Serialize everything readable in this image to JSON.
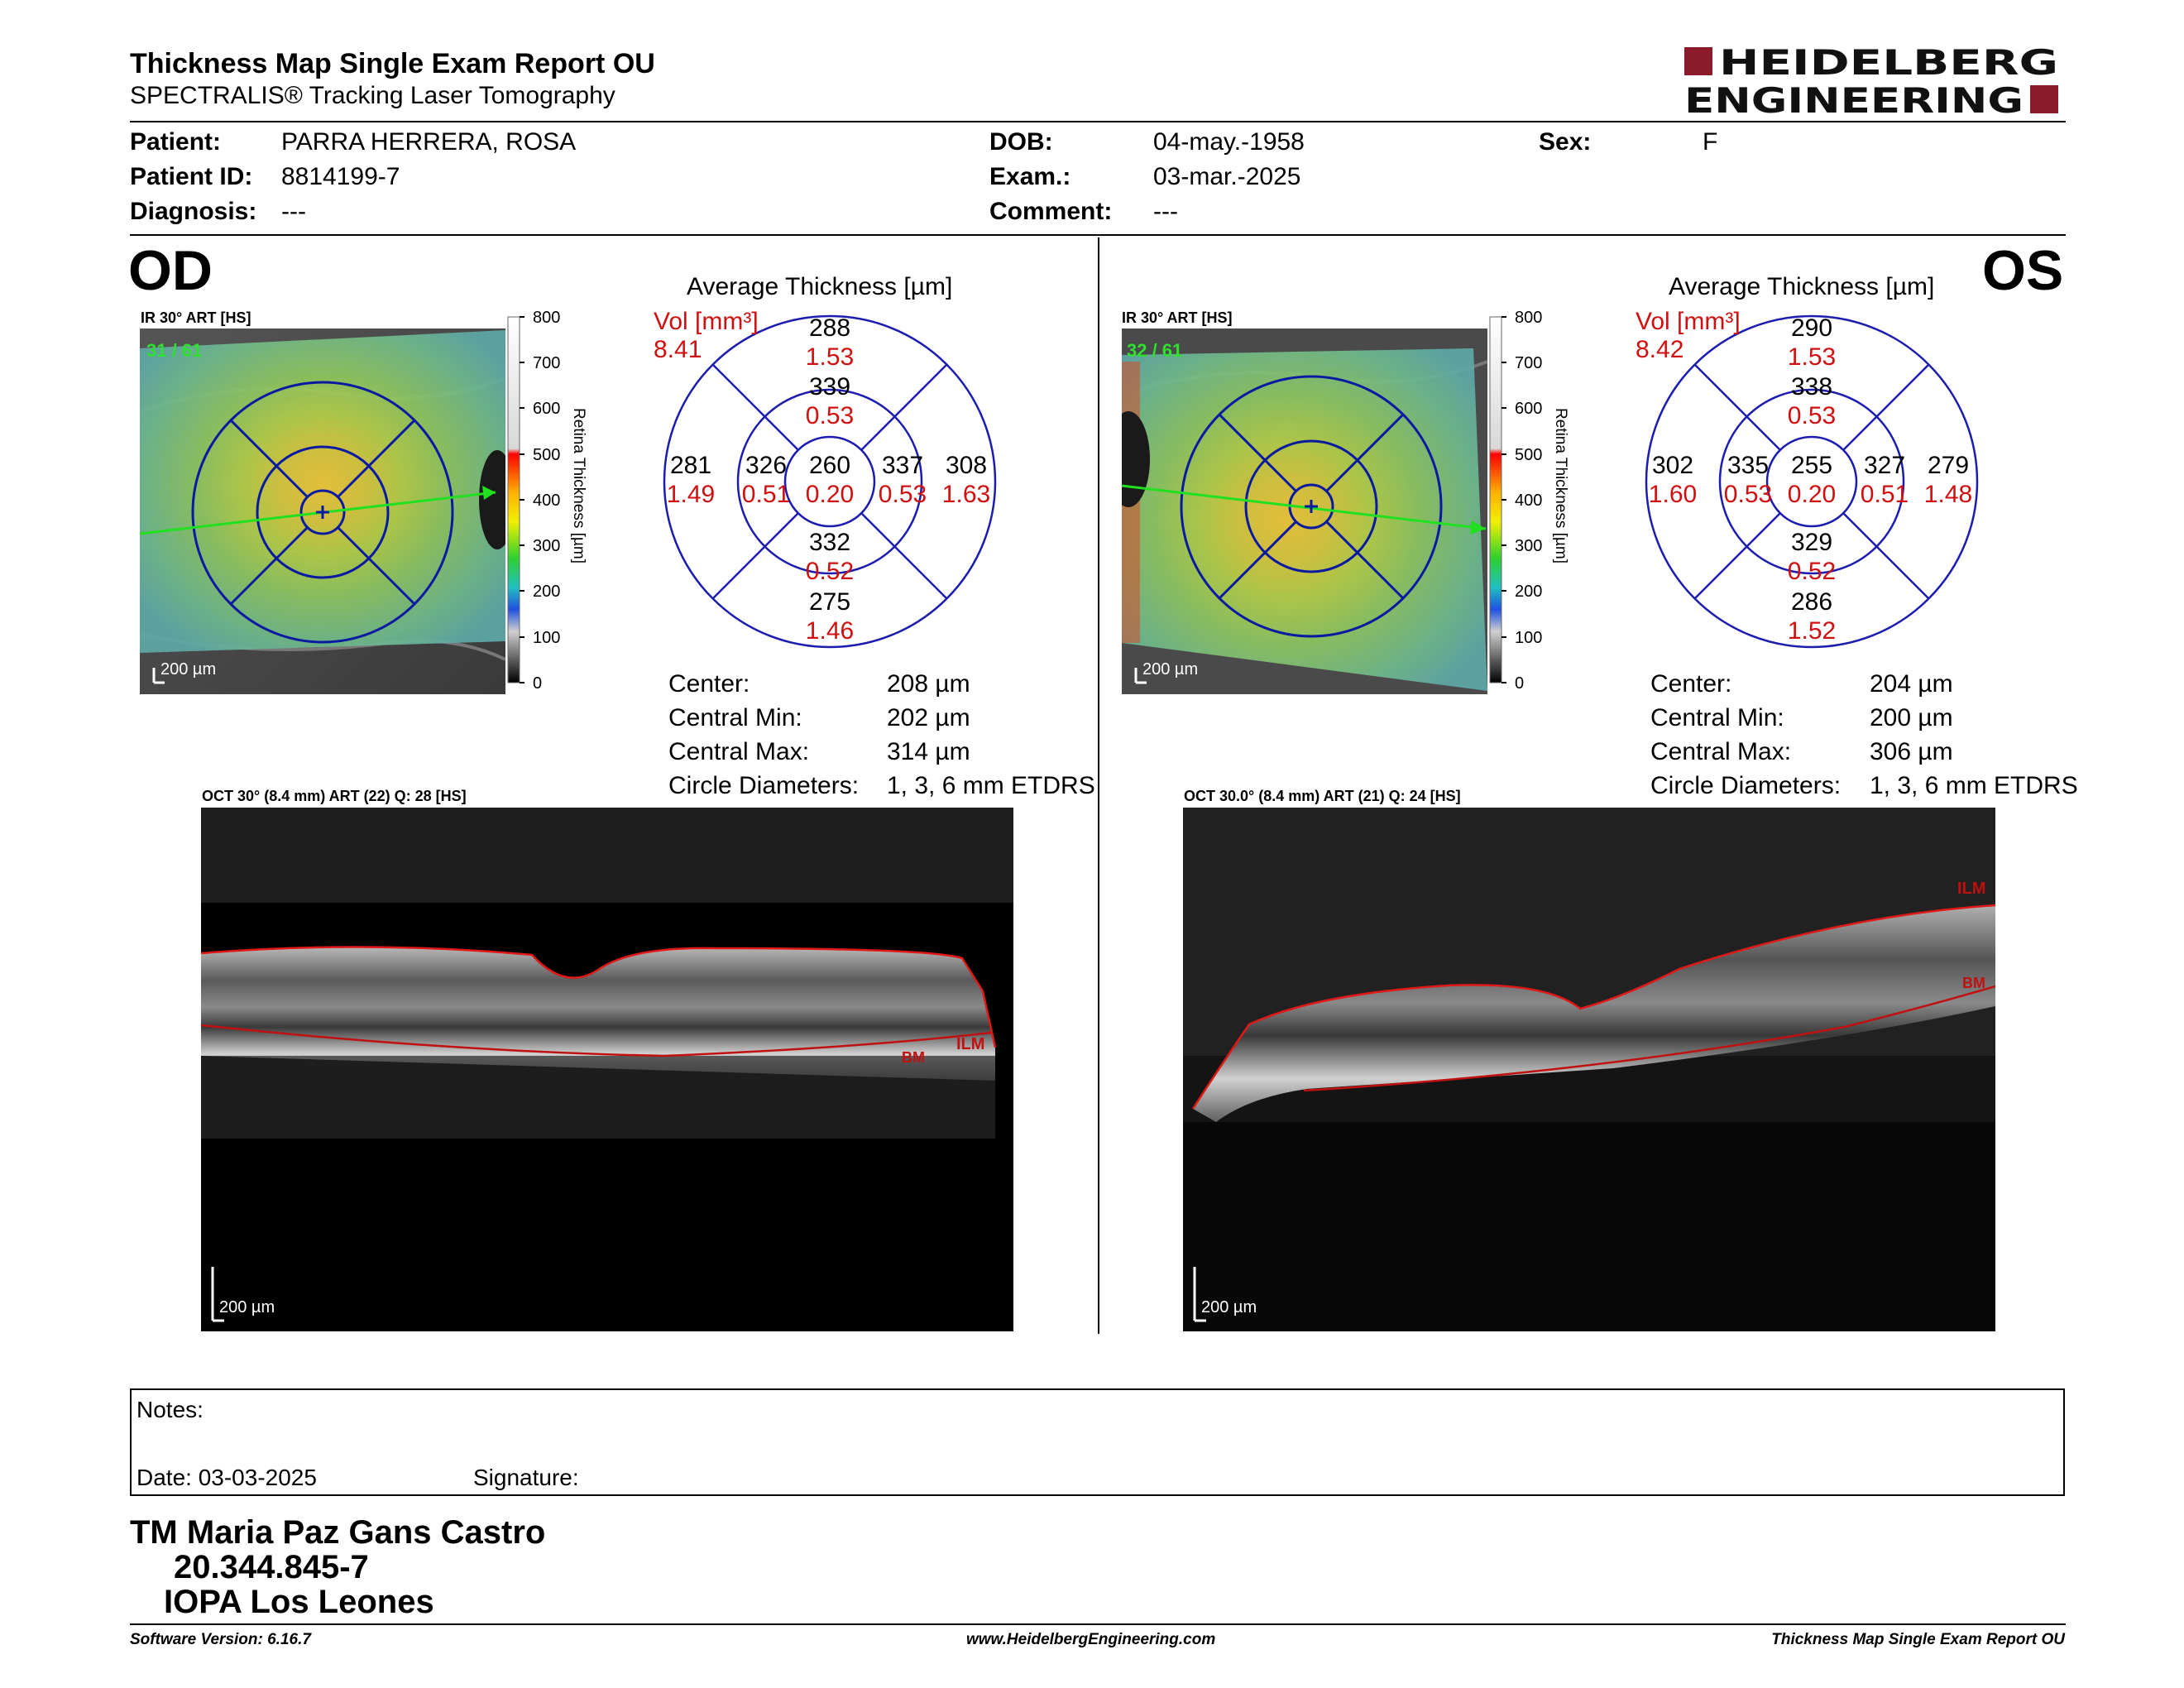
{
  "header": {
    "title": "Thickness Map Single Exam Report OU",
    "subtitle": "SPECTRALIS® Tracking Laser Tomography",
    "logo_line1": "HEIDELBERG",
    "logo_line2": "ENGINEERING",
    "brand_color": "#8b1a2a"
  },
  "patient": {
    "name_label": "Patient:",
    "name": "PARRA HERRERA, ROSA",
    "id_label": "Patient ID:",
    "id": "8814199-7",
    "diag_label": "Diagnosis:",
    "diag": "---",
    "dob_label": "DOB:",
    "dob": "04-may.-1958",
    "exam_label": "Exam.:",
    "exam": "03-mar.-2025",
    "comment_label": "Comment:",
    "comment": "---",
    "sex_label": "Sex:",
    "sex": "F"
  },
  "colorbar": {
    "ticks": [
      "800",
      "700",
      "600",
      "500",
      "400",
      "300",
      "200",
      "100",
      "0"
    ],
    "label": "Retina  Thickness [µm]"
  },
  "od": {
    "eye": "OD",
    "ir_header": "IR 30° ART [HS]",
    "frames": "31 / 61",
    "scale": "200 µm",
    "avg_title": "Average Thickness [µm]",
    "vol_label": "Vol [mm³]",
    "vol_value": "8.41",
    "grid": {
      "center": {
        "t": "260",
        "v": "0.20"
      },
      "inner_top": {
        "t": "339",
        "v": "0.53"
      },
      "inner_left": {
        "t": "326",
        "v": "0.51"
      },
      "inner_right": {
        "t": "337",
        "v": "0.53"
      },
      "inner_bottom": {
        "t": "332",
        "v": "0.52"
      },
      "outer_top": {
        "t": "288",
        "v": "1.53"
      },
      "outer_left": {
        "t": "281",
        "v": "1.49"
      },
      "outer_right": {
        "t": "308",
        "v": "1.63"
      },
      "outer_bottom": {
        "t": "275",
        "v": "1.46"
      }
    },
    "stats": {
      "center_label": "Center:",
      "center": "208 µm",
      "min_label": "Central Min:",
      "min": "202 µm",
      "max_label": "Central Max:",
      "max": "314 µm",
      "diam_label": "Circle Diameters:",
      "diam": "1, 3, 6 mm ETDRS"
    },
    "oct_header": "OCT 30° (8.4 mm) ART (22) Q: 28 [HS]",
    "oct_scale": "200 µm",
    "ilm": "ILM",
    "bm": "BM"
  },
  "os": {
    "eye": "OS",
    "ir_header": "IR 30° ART [HS]",
    "frames": "32 / 61",
    "scale": "200 µm",
    "avg_title": "Average Thickness [µm]",
    "vol_label": "Vol [mm³]",
    "vol_value": "8.42",
    "grid": {
      "center": {
        "t": "255",
        "v": "0.20"
      },
      "inner_top": {
        "t": "338",
        "v": "0.53"
      },
      "inner_left": {
        "t": "335",
        "v": "0.53"
      },
      "inner_right": {
        "t": "327",
        "v": "0.51"
      },
      "inner_bottom": {
        "t": "329",
        "v": "0.52"
      },
      "outer_top": {
        "t": "290",
        "v": "1.53"
      },
      "outer_left": {
        "t": "302",
        "v": "1.60"
      },
      "outer_right": {
        "t": "279",
        "v": "1.48"
      },
      "outer_bottom": {
        "t": "286",
        "v": "1.52"
      }
    },
    "stats": {
      "center_label": "Center:",
      "center": "204 µm",
      "min_label": "Central Min:",
      "min": "200 µm",
      "max_label": "Central Max:",
      "max": "306 µm",
      "diam_label": "Circle Diameters:",
      "diam": "1, 3, 6 mm ETDRS"
    },
    "oct_header": "OCT 30.0° (8.4 mm) ART (21) Q: 24 [HS]",
    "oct_scale": "200 µm",
    "ilm": "ILM",
    "bm": "BM"
  },
  "notes": {
    "notes_label": "Notes:",
    "date_label": "Date: 03-03-2025",
    "signature_label": "Signature:"
  },
  "signature_block": {
    "line1": "TM Maria Paz Gans Castro",
    "line2": "20.344.845-7",
    "line3": "IOPA Los Leones"
  },
  "footer": {
    "left": "Software Version: 6.16.7",
    "center": "www.HeidelbergEngineering.com",
    "right": "Thickness Map Single Exam Report OU"
  }
}
